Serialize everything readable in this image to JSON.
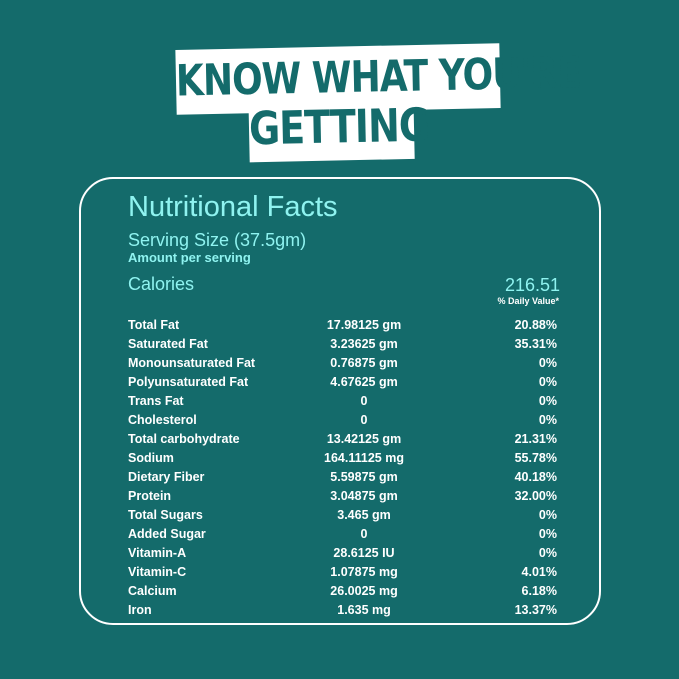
{
  "headline": {
    "line1": "KNOW WHAT YOU'RE",
    "line2": "GETTING"
  },
  "card": {
    "title": "Nutritional Facts",
    "serving_size": "Serving Size (37.5gm)",
    "amount_per_serving": "Amount per serving",
    "calories_label": "Calories",
    "calories_value": "216.51",
    "daily_value_header": "% Daily Value*"
  },
  "nutrients": [
    {
      "name": "Total Fat",
      "amount": "17.98125 gm",
      "dv": "20.88%"
    },
    {
      "name": "Saturated Fat",
      "amount": "3.23625 gm",
      "dv": "35.31%"
    },
    {
      "name": "Monounsaturated Fat",
      "amount": "0.76875 gm",
      "dv": "0%"
    },
    {
      "name": "Polyunsaturated Fat",
      "amount": "4.67625 gm",
      "dv": "0%"
    },
    {
      "name": "Trans Fat",
      "amount": "0",
      "dv": "0%"
    },
    {
      "name": "Cholesterol",
      "amount": "0",
      "dv": "0%"
    },
    {
      "name": "Total carbohydrate",
      "amount": "13.42125 gm",
      "dv": "21.31%"
    },
    {
      "name": "Sodium",
      "amount": "164.11125 mg",
      "dv": "55.78%"
    },
    {
      "name": "Dietary Fiber",
      "amount": "5.59875 gm",
      "dv": "40.18%"
    },
    {
      "name": "Protein",
      "amount": "3.04875 gm",
      "dv": "32.00%"
    },
    {
      "name": "Total Sugars",
      "amount": "3.465 gm",
      "dv": "0%"
    },
    {
      "name": "Added Sugar",
      "amount": "0",
      "dv": "0%"
    },
    {
      "name": "Vitamin-A",
      "amount": "28.6125 IU",
      "dv": "0%"
    },
    {
      "name": "Vitamin-C",
      "amount": "1.07875 mg",
      "dv": "4.01%"
    },
    {
      "name": "Calcium",
      "amount": "26.0025 mg",
      "dv": "6.18%"
    },
    {
      "name": "Iron",
      "amount": "1.635 mg",
      "dv": "13.37%"
    }
  ],
  "colors": {
    "background": "#146b6b",
    "accent": "#8ff3f0",
    "text": "#ffffff"
  }
}
